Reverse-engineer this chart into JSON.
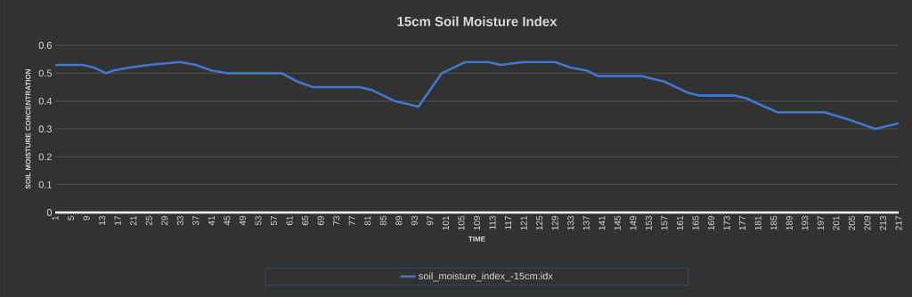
{
  "chart_data": {
    "type": "line",
    "title": "15cm Soil Moisture Index",
    "xlabel": "TIME",
    "ylabel": "SOIL MOISTURE CONCENTRATION",
    "x": [
      1,
      8,
      11,
      14,
      16,
      20,
      25,
      33,
      37,
      41,
      45,
      55,
      59,
      63,
      67,
      69,
      72,
      79,
      82,
      88,
      91,
      94,
      100,
      103,
      106,
      109,
      112,
      115,
      121,
      125,
      129,
      133,
      137,
      140,
      148,
      151,
      157,
      163,
      166,
      175,
      178,
      181,
      186,
      191,
      198,
      205,
      211,
      217
    ],
    "series": [
      {
        "name": "soil_moisture_index_-15cm:idx",
        "color": "#4177cf",
        "values": [
          0.53,
          0.53,
          0.52,
          0.5,
          0.51,
          0.52,
          0.53,
          0.54,
          0.53,
          0.51,
          0.5,
          0.5,
          0.5,
          0.47,
          0.45,
          0.45,
          0.45,
          0.45,
          0.44,
          0.4,
          0.39,
          0.38,
          0.5,
          0.52,
          0.54,
          0.54,
          0.54,
          0.53,
          0.54,
          0.54,
          0.54,
          0.52,
          0.51,
          0.49,
          0.49,
          0.49,
          0.47,
          0.43,
          0.42,
          0.42,
          0.41,
          0.39,
          0.36,
          0.36,
          0.36,
          0.33,
          0.3,
          0.32
        ]
      }
    ],
    "xlim": [
      1,
      217
    ],
    "ylim": [
      0,
      0.6
    ],
    "xticks": [
      1,
      5,
      9,
      13,
      17,
      21,
      25,
      29,
      33,
      37,
      41,
      45,
      49,
      53,
      57,
      61,
      65,
      69,
      73,
      77,
      81,
      85,
      89,
      93,
      97,
      101,
      105,
      109,
      113,
      117,
      121,
      125,
      129,
      133,
      137,
      141,
      145,
      149,
      153,
      157,
      161,
      165,
      169,
      173,
      177,
      181,
      185,
      189,
      193,
      197,
      201,
      205,
      209,
      213,
      217
    ],
    "yticks": [
      0,
      0.1,
      0.2,
      0.3,
      0.4,
      0.5,
      0.6
    ],
    "grid": "y",
    "legend": "bottom"
  }
}
